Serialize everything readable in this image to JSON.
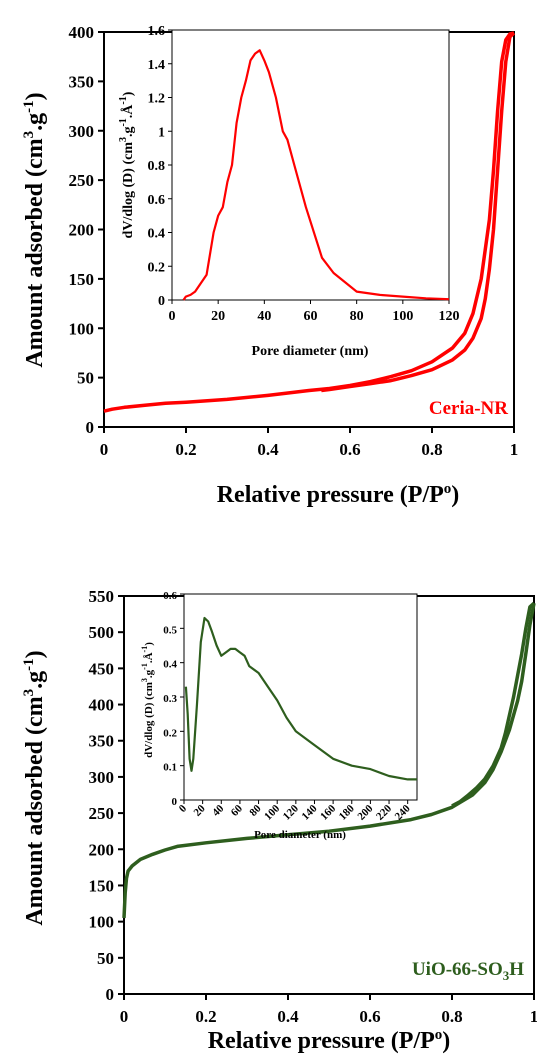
{
  "chart_data": [
    {
      "type": "line",
      "ylabel": "Amount adsorbed (cm3.g-1)",
      "ylabel_parts": {
        "main": "Amount adsorbed (cm",
        "sup1": "3",
        "mid": ".g",
        "sup2": "-1",
        "end": ")"
      },
      "xlabel": "Relative pressure (P/Po)",
      "xlabel_parts": {
        "main": "Relative pressure (P/P",
        "sup": "o",
        "end": ")"
      },
      "xlim": [
        0,
        1
      ],
      "ylim": [
        0,
        400
      ],
      "xticks": [
        "0",
        "0.2",
        "0.4",
        "0.6",
        "0.8",
        "1"
      ],
      "yticks": [
        "0",
        "50",
        "100",
        "150",
        "200",
        "250",
        "300",
        "350",
        "400"
      ],
      "sample_label": "Ceria-NR",
      "color": "#ff0000",
      "series": [
        {
          "x": [
            0.0,
            0.02,
            0.05,
            0.1,
            0.15,
            0.2,
            0.3,
            0.4,
            0.5,
            0.55,
            0.6,
            0.65,
            0.7,
            0.75,
            0.8,
            0.85,
            0.88,
            0.9,
            0.92,
            0.94,
            0.95,
            0.96,
            0.97,
            0.98,
            0.99,
            1.0
          ],
          "y": [
            16,
            18,
            20,
            22,
            24,
            25,
            28,
            32,
            37,
            39,
            42,
            46,
            51,
            57,
            66,
            80,
            95,
            115,
            150,
            210,
            260,
            320,
            370,
            392,
            398,
            399
          ]
        },
        {
          "x": [
            1.0,
            0.99,
            0.98,
            0.97,
            0.96,
            0.95,
            0.94,
            0.93,
            0.92,
            0.9,
            0.88,
            0.85,
            0.82,
            0.8,
            0.75,
            0.7,
            0.65,
            0.6,
            0.55,
            0.53
          ],
          "y": [
            399,
            395,
            370,
            320,
            260,
            200,
            160,
            130,
            110,
            90,
            78,
            68,
            62,
            58,
            52,
            47,
            44,
            41,
            38,
            37
          ]
        }
      ],
      "inset": {
        "xlabel": "Pore diameter (nm)",
        "ylabel": "dV/dlog (D) (cm3.g-1.Å-1)",
        "ylabel_parts": {
          "a": "dV/dlog (D) (cm",
          "s1": "3",
          "b": ".g",
          "s2": "-1",
          "c": ".Å",
          "s3": "-1",
          "d": ")"
        },
        "xlim": [
          0,
          120
        ],
        "ylim": [
          0,
          1.6
        ],
        "xticks": [
          "0",
          "20",
          "40",
          "60",
          "80",
          "100",
          "120"
        ],
        "yticks": [
          "0",
          "0.2",
          "0.4",
          "0.6",
          "0.8",
          "1",
          "1.2",
          "1.4",
          "1.6"
        ],
        "x": [
          5,
          6,
          8,
          10,
          15,
          18,
          20,
          22,
          24,
          26,
          28,
          30,
          32,
          34,
          36,
          38,
          40,
          42,
          45,
          48,
          50,
          53,
          58,
          65,
          70,
          80,
          90,
          100,
          110,
          120
        ],
        "y": [
          0.0,
          0.02,
          0.03,
          0.05,
          0.15,
          0.4,
          0.5,
          0.55,
          0.7,
          0.8,
          1.05,
          1.2,
          1.3,
          1.42,
          1.46,
          1.48,
          1.42,
          1.35,
          1.2,
          1.0,
          0.95,
          0.8,
          0.55,
          0.25,
          0.16,
          0.05,
          0.03,
          0.02,
          0.01,
          0.005
        ]
      }
    },
    {
      "type": "line",
      "ylabel": "Amount adsorbed (cm3.g-1)",
      "ylabel_parts": {
        "main": "Amount adsorbed (cm",
        "sup1": "3",
        "mid": ".g",
        "sup2": "-1",
        "end": ")"
      },
      "xlabel": "Relative pressure (P/Po)",
      "xlabel_parts": {
        "main": "Relative pressure (P/P",
        "sup": "o",
        "end": ")"
      },
      "xlim": [
        0,
        1
      ],
      "ylim": [
        0,
        550
      ],
      "xticks": [
        "0",
        "0.2",
        "0.4",
        "0.6",
        "0.8",
        "1"
      ],
      "yticks": [
        "0",
        "50",
        "100",
        "150",
        "200",
        "250",
        "300",
        "350",
        "400",
        "450",
        "500",
        "550"
      ],
      "sample_label": "UiO-66-SO3H",
      "sample_label_parts": {
        "main": "UiO-66-SO",
        "sub": "3",
        "end": "H"
      },
      "color": "#2e5e1e",
      "series": [
        {
          "x": [
            0.0,
            0.003,
            0.006,
            0.01,
            0.02,
            0.04,
            0.07,
            0.1,
            0.13,
            0.2,
            0.3,
            0.4,
            0.5,
            0.6,
            0.7,
            0.75,
            0.8,
            0.85,
            0.88,
            0.9,
            0.92,
            0.94,
            0.96,
            0.97,
            0.98,
            0.99,
            1.0
          ],
          "y": [
            105,
            140,
            160,
            170,
            177,
            186,
            193,
            199,
            204,
            209,
            215,
            220,
            225,
            232,
            241,
            248,
            258,
            275,
            292,
            310,
            335,
            365,
            405,
            432,
            470,
            510,
            540
          ]
        },
        {
          "x": [
            1.0,
            0.99,
            0.98,
            0.97,
            0.96,
            0.95,
            0.94,
            0.93,
            0.92,
            0.9,
            0.88,
            0.86,
            0.84,
            0.82,
            0.8
          ],
          "y": [
            540,
            535,
            505,
            470,
            440,
            410,
            385,
            360,
            340,
            315,
            297,
            285,
            275,
            266,
            260
          ]
        }
      ],
      "inset": {
        "xlabel": "Pore diameter (nm)",
        "ylabel": "dV/dlog (D) (cm3.g-1.Å-1)",
        "ylabel_parts": {
          "a": "dV/dlog (D) (cm",
          "s1": "3",
          "b": ".g",
          "s2": "-1",
          "c": ".Å",
          "s3": "-1",
          "d": ")"
        },
        "xlim": [
          0,
          250
        ],
        "ylim": [
          0,
          0.6
        ],
        "xticks": [
          "0",
          "20",
          "40",
          "60",
          "80",
          "100",
          "120",
          "140",
          "160",
          "180",
          "200",
          "220",
          "240"
        ],
        "yticks": [
          "0",
          "0.1",
          "0.2",
          "0.3",
          "0.4",
          "0.5",
          "0.6"
        ],
        "x": [
          2,
          4,
          6,
          8,
          10,
          14,
          18,
          22,
          26,
          30,
          35,
          40,
          45,
          50,
          55,
          60,
          65,
          70,
          80,
          90,
          100,
          110,
          120,
          130,
          140,
          160,
          180,
          200,
          220,
          240,
          250
        ],
        "y": [
          0.33,
          0.25,
          0.12,
          0.085,
          0.12,
          0.28,
          0.46,
          0.53,
          0.52,
          0.49,
          0.45,
          0.42,
          0.43,
          0.44,
          0.44,
          0.43,
          0.42,
          0.39,
          0.37,
          0.33,
          0.29,
          0.24,
          0.2,
          0.18,
          0.16,
          0.12,
          0.1,
          0.09,
          0.07,
          0.06,
          0.06
        ]
      }
    }
  ]
}
